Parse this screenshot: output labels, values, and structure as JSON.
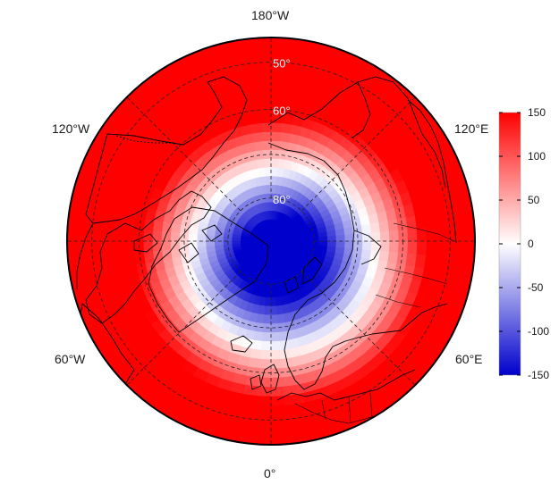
{
  "map": {
    "projection": "north-polar-stereographic",
    "longitude_labels": [
      {
        "id": "lon-180w",
        "text": "180°W"
      },
      {
        "id": "lon-120w",
        "text": "120°W"
      },
      {
        "id": "lon-120e",
        "text": "120°E"
      },
      {
        "id": "lon-60w",
        "text": "60°W"
      },
      {
        "id": "lon-60e",
        "text": "60°E"
      },
      {
        "id": "lon-0",
        "text": "0°"
      }
    ],
    "latitude_labels": [
      {
        "id": "lat-60",
        "text": "60°",
        "lat": 60
      },
      {
        "id": "lat-70",
        "text": "80°",
        "lat": 80
      },
      {
        "id": "lat-50",
        "text": "50°",
        "lat": 50
      }
    ],
    "graticule_latitudes": [
      50,
      60,
      70,
      80
    ],
    "graticule_longitudes": [
      0,
      45,
      90,
      135,
      180,
      225,
      270,
      315
    ],
    "colorbar": {
      "min": -150,
      "max": 150,
      "ticks": [
        "150",
        "100",
        "50",
        "0",
        "-50",
        "-100",
        "-150"
      ],
      "tick_values": [
        150,
        100,
        50,
        0,
        -50,
        -100,
        -150
      ],
      "colors": {
        "low": "#0000cc",
        "mid": "#ffffff",
        "high": "#ff0000"
      }
    }
  }
}
